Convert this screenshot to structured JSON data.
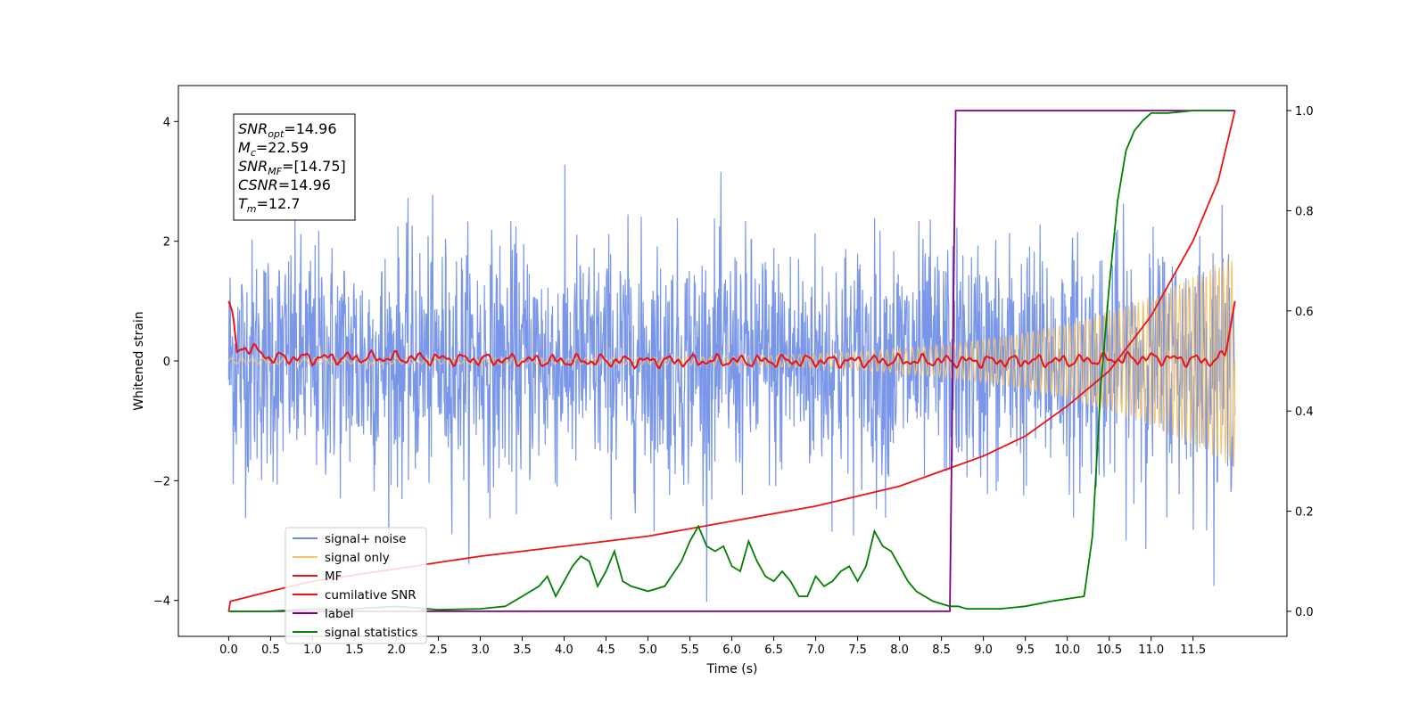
{
  "chart_data": {
    "type": "line",
    "title": "",
    "xlabel": "Time (s)",
    "ylabel": "Whitened strain",
    "xlim": [
      -0.6,
      12.62
    ],
    "ylim": [
      -4.6,
      4.6
    ],
    "y2lim": [
      -0.05,
      1.05
    ],
    "xticks": [
      0.0,
      0.5,
      1.0,
      1.5,
      2.0,
      2.5,
      3.0,
      3.5,
      4.0,
      4.5,
      5.0,
      5.5,
      6.0,
      6.5,
      7.0,
      7.5,
      8.0,
      8.5,
      9.0,
      9.5,
      10.0,
      10.5,
      11.0,
      11.5
    ],
    "xtick_labels": [
      "0.0",
      "0.5",
      "1.0",
      "1.5",
      "2.0",
      "2.5",
      "3.0",
      "3.5",
      "4.0",
      "4.5",
      "5.0",
      "5.5",
      "6.0",
      "6.5",
      "7.0",
      "7.5",
      "8.0",
      "8.5",
      "9.0",
      "9.5",
      "10.0",
      "10.5",
      "11.0",
      "11.5"
    ],
    "yticks": [
      -4,
      -2,
      0,
      2,
      4
    ],
    "ytick_labels": [
      "−4",
      "−2",
      "0",
      "2",
      "4"
    ],
    "y2ticks": [
      0.0,
      0.2,
      0.4,
      0.6,
      0.8,
      1.0
    ],
    "y2tick_labels": [
      "0.0",
      "0.2",
      "0.4",
      "0.6",
      "0.8",
      "1.0"
    ],
    "grid": false,
    "legend_position": "lower-left",
    "annotation": {
      "lines": [
        {
          "sym": "SNR",
          "sub": "opt",
          "val": "=14.96"
        },
        {
          "sym": "M",
          "sub": "c",
          "val": "=22.59"
        },
        {
          "sym": "SNR",
          "sub": "MF",
          "val": "=[14.75]"
        },
        {
          "sym": "CSNR",
          "sub": "",
          "val": "=14.96"
        },
        {
          "sym": "T",
          "sub": "m",
          "val": "=12.7"
        }
      ]
    },
    "series": [
      {
        "name": "signal+ noise",
        "axis": "left",
        "color": "#6a8be6",
        "kind": "noise",
        "sigma": 1.0,
        "x_range": [
          0,
          12
        ]
      },
      {
        "name": "signal only",
        "axis": "left",
        "color": "#f5c56b",
        "kind": "chirp",
        "x_range": [
          0,
          12
        ],
        "amplitude_start": 0.05,
        "amplitude_end": 1.8
      },
      {
        "name": "MF",
        "axis": "left",
        "color": "#ee1111",
        "kind": "mf",
        "x": [
          0.0,
          0.05,
          0.1,
          0.2,
          0.5,
          1.0,
          2.0,
          4.0,
          6.0,
          8.0,
          10.0,
          11.0,
          11.8,
          11.9,
          12.0
        ],
        "y": [
          1.0,
          0.8,
          0.15,
          0.25,
          0.05,
          0.05,
          0.05,
          0.0,
          0.0,
          0.0,
          0.0,
          0.05,
          0.0,
          0.2,
          1.0
        ]
      },
      {
        "name": "cumilative SNR",
        "axis": "right",
        "color": "#ee1111",
        "kind": "line",
        "x": [
          0.0,
          0.02,
          0.5,
          1.0,
          2.0,
          3.0,
          4.0,
          5.0,
          6.0,
          7.0,
          8.0,
          8.5,
          9.0,
          9.5,
          10.0,
          10.5,
          11.0,
          11.5,
          11.8,
          12.0
        ],
        "y": [
          0.0,
          0.02,
          0.04,
          0.06,
          0.085,
          0.11,
          0.13,
          0.15,
          0.18,
          0.21,
          0.25,
          0.28,
          0.31,
          0.35,
          0.41,
          0.48,
          0.59,
          0.74,
          0.86,
          1.0
        ]
      },
      {
        "name": "label",
        "axis": "right",
        "color": "#800080",
        "kind": "line",
        "x": [
          0.0,
          8.6,
          8.67,
          12.0
        ],
        "y": [
          0.0,
          0.0,
          1.0,
          1.0
        ]
      },
      {
        "name": "signal statistics",
        "axis": "right",
        "color": "#008000",
        "kind": "line",
        "x": [
          0.0,
          0.5,
          1.0,
          1.5,
          2.0,
          2.5,
          3.0,
          3.3,
          3.5,
          3.7,
          3.8,
          3.9,
          4.0,
          4.1,
          4.2,
          4.3,
          4.4,
          4.5,
          4.6,
          4.7,
          4.8,
          5.0,
          5.2,
          5.4,
          5.5,
          5.6,
          5.7,
          5.8,
          5.9,
          6.0,
          6.1,
          6.2,
          6.3,
          6.4,
          6.5,
          6.6,
          6.7,
          6.8,
          6.9,
          7.0,
          7.1,
          7.2,
          7.3,
          7.4,
          7.5,
          7.6,
          7.7,
          7.8,
          7.9,
          8.0,
          8.1,
          8.2,
          8.3,
          8.4,
          8.5,
          8.6,
          8.7,
          8.8,
          9.0,
          9.2,
          9.5,
          9.8,
          10.0,
          10.2,
          10.3,
          10.4,
          10.5,
          10.6,
          10.7,
          10.8,
          10.9,
          11.0,
          11.2,
          11.5,
          11.8,
          11.95
        ],
        "y": [
          0.0,
          0.0,
          0.005,
          0.005,
          0.01,
          0.003,
          0.005,
          0.01,
          0.03,
          0.05,
          0.07,
          0.03,
          0.06,
          0.09,
          0.11,
          0.1,
          0.05,
          0.08,
          0.12,
          0.06,
          0.05,
          0.04,
          0.05,
          0.1,
          0.14,
          0.17,
          0.13,
          0.12,
          0.13,
          0.09,
          0.08,
          0.14,
          0.1,
          0.07,
          0.06,
          0.08,
          0.06,
          0.03,
          0.03,
          0.07,
          0.05,
          0.06,
          0.08,
          0.09,
          0.06,
          0.09,
          0.16,
          0.13,
          0.12,
          0.09,
          0.06,
          0.04,
          0.03,
          0.02,
          0.015,
          0.01,
          0.01,
          0.005,
          0.005,
          0.005,
          0.01,
          0.02,
          0.025,
          0.03,
          0.15,
          0.45,
          0.65,
          0.82,
          0.92,
          0.96,
          0.98,
          0.995,
          0.995,
          1.0,
          1.0,
          1.0
        ]
      }
    ]
  }
}
